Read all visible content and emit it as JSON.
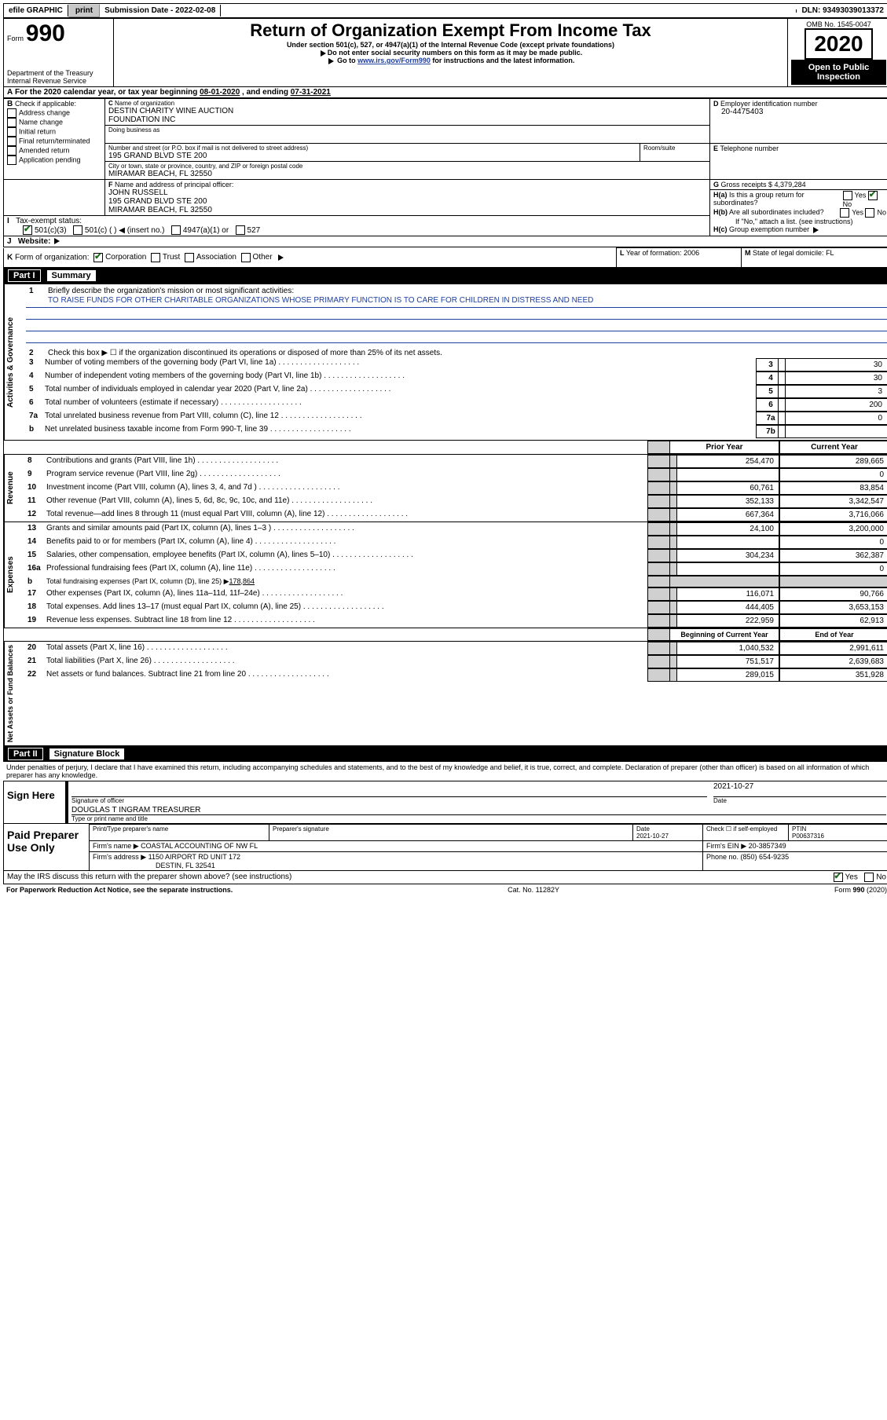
{
  "colors": {
    "link_blue": "#2040a0",
    "black": "#000000",
    "white": "#ffffff",
    "button_bg": "#c8c8c8"
  },
  "topbar": {
    "efile": "efile GRAPHIC",
    "print": "print",
    "submission_label": "Submission Date - ",
    "submission_date": "2022-02-08",
    "dln_label": "DLN: ",
    "dln": "93493039013372"
  },
  "header": {
    "form_prefix": "Form",
    "form_no": "990",
    "dept1": "Department of the Treasury",
    "dept2": "Internal Revenue Service",
    "title": "Return of Organization Exempt From Income Tax",
    "subtitle": "Under section 501(c), 527, or 4947(a)(1) of the Internal Revenue Code (except private foundations)",
    "note1": "Do not enter social security numbers on this form as it may be made public.",
    "note2_a": "Go to ",
    "note2_link": "www.irs.gov/Form990",
    "note2_b": " for instructions and the latest information.",
    "omb_label": "OMB No. ",
    "omb": "1545-0047",
    "year": "2020",
    "open_public": "Open to Public Inspection"
  },
  "A": {
    "prefix": "For the 2020 calendar year, or tax year beginning ",
    "begin": "08-01-2020",
    "mid": ", and ending ",
    "end": "07-31-2021"
  },
  "B": {
    "label": "Check if applicable:",
    "opts": [
      "Address change",
      "Name change",
      "Initial return",
      "Final return/terminated",
      "Amended return",
      "Application pending"
    ],
    "checked": [
      false,
      false,
      false,
      false,
      false,
      false
    ]
  },
  "C": {
    "name_label": "Name of organization",
    "name1": "DESTIN CHARITY WINE AUCTION",
    "name2": "FOUNDATION INC",
    "dba_label": "Doing business as",
    "addr_label": "Number and street (or P.O. box if mail is not delivered to street address)",
    "room_label": "Room/suite",
    "addr": "195 GRAND BLVD STE 200",
    "city_label": "City or town, state or province, country, and ZIP or foreign postal code",
    "city": "MIRAMAR BEACH, FL  32550"
  },
  "D": {
    "label": "Employer identification number",
    "val": "20-4475403"
  },
  "E": {
    "label": "Telephone number",
    "val": ""
  },
  "F": {
    "label": "Name and address of principal officer:",
    "name": "JOHN RUSSELL",
    "addr1": "195 GRAND BLVD STE 200",
    "addr2": "MIRAMAR BEACH, FL  32550"
  },
  "G": {
    "label": "Gross receipts $ ",
    "val": "4,379,284"
  },
  "H": {
    "a_label": "Is this a group return for subordinates?",
    "a_yes": false,
    "a_no": true,
    "b_label": "Are all subordinates included?",
    "b_yes": false,
    "b_no": false,
    "note": "If \"No,\" attach a list. (see instructions)",
    "c_label": "Group exemption number"
  },
  "I": {
    "label": "Tax-exempt status:",
    "opts": [
      "501(c)(3)",
      "501(c) (  ) ◀ (insert no.)",
      "4947(a)(1) or",
      "527"
    ],
    "checked": [
      true,
      false,
      false,
      false
    ]
  },
  "J": {
    "label": "Website:",
    "val": ""
  },
  "K": {
    "label": "Form of organization:",
    "opts": [
      "Corporation",
      "Trust",
      "Association",
      "Other"
    ],
    "checked": [
      true,
      false,
      false,
      false
    ]
  },
  "L": {
    "label": "Year of formation: ",
    "val": "2006"
  },
  "M": {
    "label": "State of legal domicile: ",
    "val": "FL"
  },
  "part1_label": "Part I",
  "part1_title": "Summary",
  "governance": {
    "heading": "Activities & Governance",
    "l1": "Briefly describe the organization's mission or most significant activities:",
    "mission": "TO RAISE FUNDS FOR OTHER CHARITABLE ORGANIZATIONS WHOSE PRIMARY FUNCTION IS TO CARE FOR CHILDREN IN DISTRESS AND NEED",
    "l2": "Check this box ▶ ☐ if the organization discontinued its operations or disposed of more than 25% of its net assets.",
    "rows": [
      {
        "n": "3",
        "t": "Number of voting members of the governing body (Part VI, line 1a)",
        "box": "3",
        "v": "30"
      },
      {
        "n": "4",
        "t": "Number of independent voting members of the governing body (Part VI, line 1b)",
        "box": "4",
        "v": "30"
      },
      {
        "n": "5",
        "t": "Total number of individuals employed in calendar year 2020 (Part V, line 2a)",
        "box": "5",
        "v": "3"
      },
      {
        "n": "6",
        "t": "Total number of volunteers (estimate if necessary)",
        "box": "6",
        "v": "200"
      },
      {
        "n": "7a",
        "t": "Total unrelated business revenue from Part VIII, column (C), line 12",
        "box": "7a",
        "v": "0"
      },
      {
        "n": "b",
        "t": "Net unrelated business taxable income from Form 990-T, line 39",
        "box": "7b",
        "v": ""
      }
    ]
  },
  "col_headers": {
    "prior": "Prior Year",
    "current": "Current Year",
    "boy": "Beginning of Current Year",
    "eoy": "End of Year"
  },
  "revenue": {
    "heading": "Revenue",
    "rows": [
      {
        "n": "8",
        "t": "Contributions and grants (Part VIII, line 1h)",
        "p": "254,470",
        "c": "289,665"
      },
      {
        "n": "9",
        "t": "Program service revenue (Part VIII, line 2g)",
        "p": "",
        "c": "0"
      },
      {
        "n": "10",
        "t": "Investment income (Part VIII, column (A), lines 3, 4, and 7d )",
        "p": "60,761",
        "c": "83,854"
      },
      {
        "n": "11",
        "t": "Other revenue (Part VIII, column (A), lines 5, 6d, 8c, 9c, 10c, and 11e)",
        "p": "352,133",
        "c": "3,342,547"
      },
      {
        "n": "12",
        "t": "Total revenue—add lines 8 through 11 (must equal Part VIII, column (A), line 12)",
        "p": "667,364",
        "c": "3,716,066"
      }
    ]
  },
  "expenses": {
    "heading": "Expenses",
    "rows": [
      {
        "n": "13",
        "t": "Grants and similar amounts paid (Part IX, column (A), lines 1–3 )",
        "p": "24,100",
        "c": "3,200,000"
      },
      {
        "n": "14",
        "t": "Benefits paid to or for members (Part IX, column (A), line 4)",
        "p": "",
        "c": "0"
      },
      {
        "n": "15",
        "t": "Salaries, other compensation, employee benefits (Part IX, column (A), lines 5–10)",
        "p": "304,234",
        "c": "362,387"
      },
      {
        "n": "16a",
        "t": "Professional fundraising fees (Part IX, column (A), line 11e)",
        "p": "",
        "c": "0"
      }
    ],
    "l16b_t": "Total fundraising expenses (Part IX, column (D), line 25) ▶",
    "l16b_v": "178,864",
    "rows2": [
      {
        "n": "17",
        "t": "Other expenses (Part IX, column (A), lines 11a–11d, 11f–24e)",
        "p": "116,071",
        "c": "90,766"
      },
      {
        "n": "18",
        "t": "Total expenses. Add lines 13–17 (must equal Part IX, column (A), line 25)",
        "p": "444,405",
        "c": "3,653,153"
      },
      {
        "n": "19",
        "t": "Revenue less expenses. Subtract line 18 from line 12",
        "p": "222,959",
        "c": "62,913"
      }
    ]
  },
  "netassets": {
    "heading": "Net Assets or Fund Balances",
    "rows": [
      {
        "n": "20",
        "t": "Total assets (Part X, line 16)",
        "p": "1,040,532",
        "c": "2,991,611"
      },
      {
        "n": "21",
        "t": "Total liabilities (Part X, line 26)",
        "p": "751,517",
        "c": "2,639,683"
      },
      {
        "n": "22",
        "t": "Net assets or fund balances. Subtract line 21 from line 20",
        "p": "289,015",
        "c": "351,928"
      }
    ]
  },
  "part2_label": "Part II",
  "part2_title": "Signature Block",
  "penalties": "Under penalties of perjury, I declare that I have examined this return, including accompanying schedules and statements, and to the best of my knowledge and belief, it is true, correct, and complete. Declaration of preparer (other than officer) is based on all information of which preparer has any knowledge.",
  "sign": {
    "heading": "Sign Here",
    "sig_label": "Signature of officer",
    "date_label": "Date",
    "date": "2021-10-27",
    "name": "DOUGLAS T INGRAM TREASURER",
    "name_label": "Type or print name and title"
  },
  "preparer": {
    "heading": "Paid Preparer Use Only",
    "name_hdr": "Print/Type preparer's name",
    "sig_hdr": "Preparer's signature",
    "date_hdr": "Date",
    "date": "2021-10-27",
    "check_label": "Check ☐ if self-employed",
    "ptin_label": "PTIN",
    "ptin": "P00637316",
    "firm_name_label": "Firm's name  ▶",
    "firm_name": "COASTAL ACCOUNTING OF NW FL",
    "firm_ein_label": "Firm's EIN ▶ ",
    "firm_ein": "20-3857349",
    "firm_addr_label": "Firm's address ▶",
    "firm_addr1": "1150 AIRPORT RD UNIT 172",
    "firm_addr2": "DESTIN, FL  32541",
    "phone_label": "Phone no. ",
    "phone": "(850) 654-9235"
  },
  "discuss": {
    "q": "May the IRS discuss this return with the preparer shown above? (see instructions)",
    "yes": true,
    "no": false
  },
  "footer": {
    "pra": "For Paperwork Reduction Act Notice, see the separate instructions.",
    "cat": "Cat. No. 11282Y",
    "form": "Form 990 (2020)"
  }
}
